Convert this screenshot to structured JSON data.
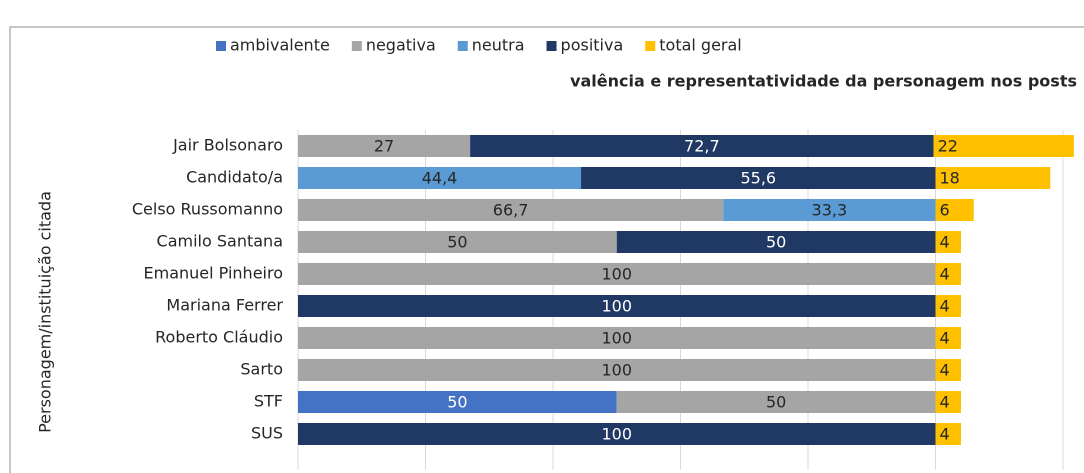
{
  "chart_data": {
    "type": "stacked-bar-horizontal",
    "subtitle": "valência e representatividade da personagem nos posts",
    "ylabel": "Personagem/instituição citada",
    "categories": [
      "Jair Bolsonaro",
      "Candidato/a",
      "Celso Russomanno",
      "Camilo Santana",
      "Emanuel Pinheiro",
      "Mariana Ferrer",
      "Roberto Cláudio",
      "Sarto",
      "STF",
      "SUS"
    ],
    "series": [
      {
        "name": "ambivalente",
        "color": "#4472c4",
        "label_color": "#ffffff",
        "values": [
          null,
          null,
          null,
          null,
          null,
          null,
          null,
          null,
          50,
          null
        ]
      },
      {
        "name": "negativa",
        "color": "#a5a5a5",
        "label_color": "#262626",
        "values": [
          27,
          null,
          66.7,
          50,
          100,
          null,
          100,
          100,
          50,
          null
        ],
        "value_labels": [
          "27",
          null,
          "66,7",
          "50",
          "100",
          null,
          "100",
          "100",
          "50",
          null
        ]
      },
      {
        "name": "neutra",
        "color": "#5b9bd5",
        "label_color": "#262626",
        "values": [
          null,
          44.4,
          33.3,
          null,
          null,
          null,
          null,
          null,
          null,
          null
        ],
        "value_labels": [
          null,
          "44,4",
          "33,3",
          null,
          null,
          null,
          null,
          null,
          null,
          null
        ]
      },
      {
        "name": "positiva",
        "color": "#203864",
        "label_color": "#ffffff",
        "values": [
          72.7,
          55.6,
          null,
          50,
          null,
          100,
          null,
          null,
          null,
          100
        ],
        "value_labels": [
          "72,7",
          "55,6",
          null,
          "50",
          null,
          "100",
          null,
          null,
          null,
          "100"
        ]
      },
      {
        "name": "total geral",
        "color": "#ffc000",
        "label_color": "#262626",
        "values": [
          22,
          18,
          6,
          4,
          4,
          4,
          4,
          4,
          4,
          4
        ]
      }
    ],
    "xlim": [
      0,
      120
    ],
    "xticks": [
      0,
      20,
      40,
      60,
      80,
      100,
      120
    ],
    "grid": true,
    "legend": "top"
  }
}
